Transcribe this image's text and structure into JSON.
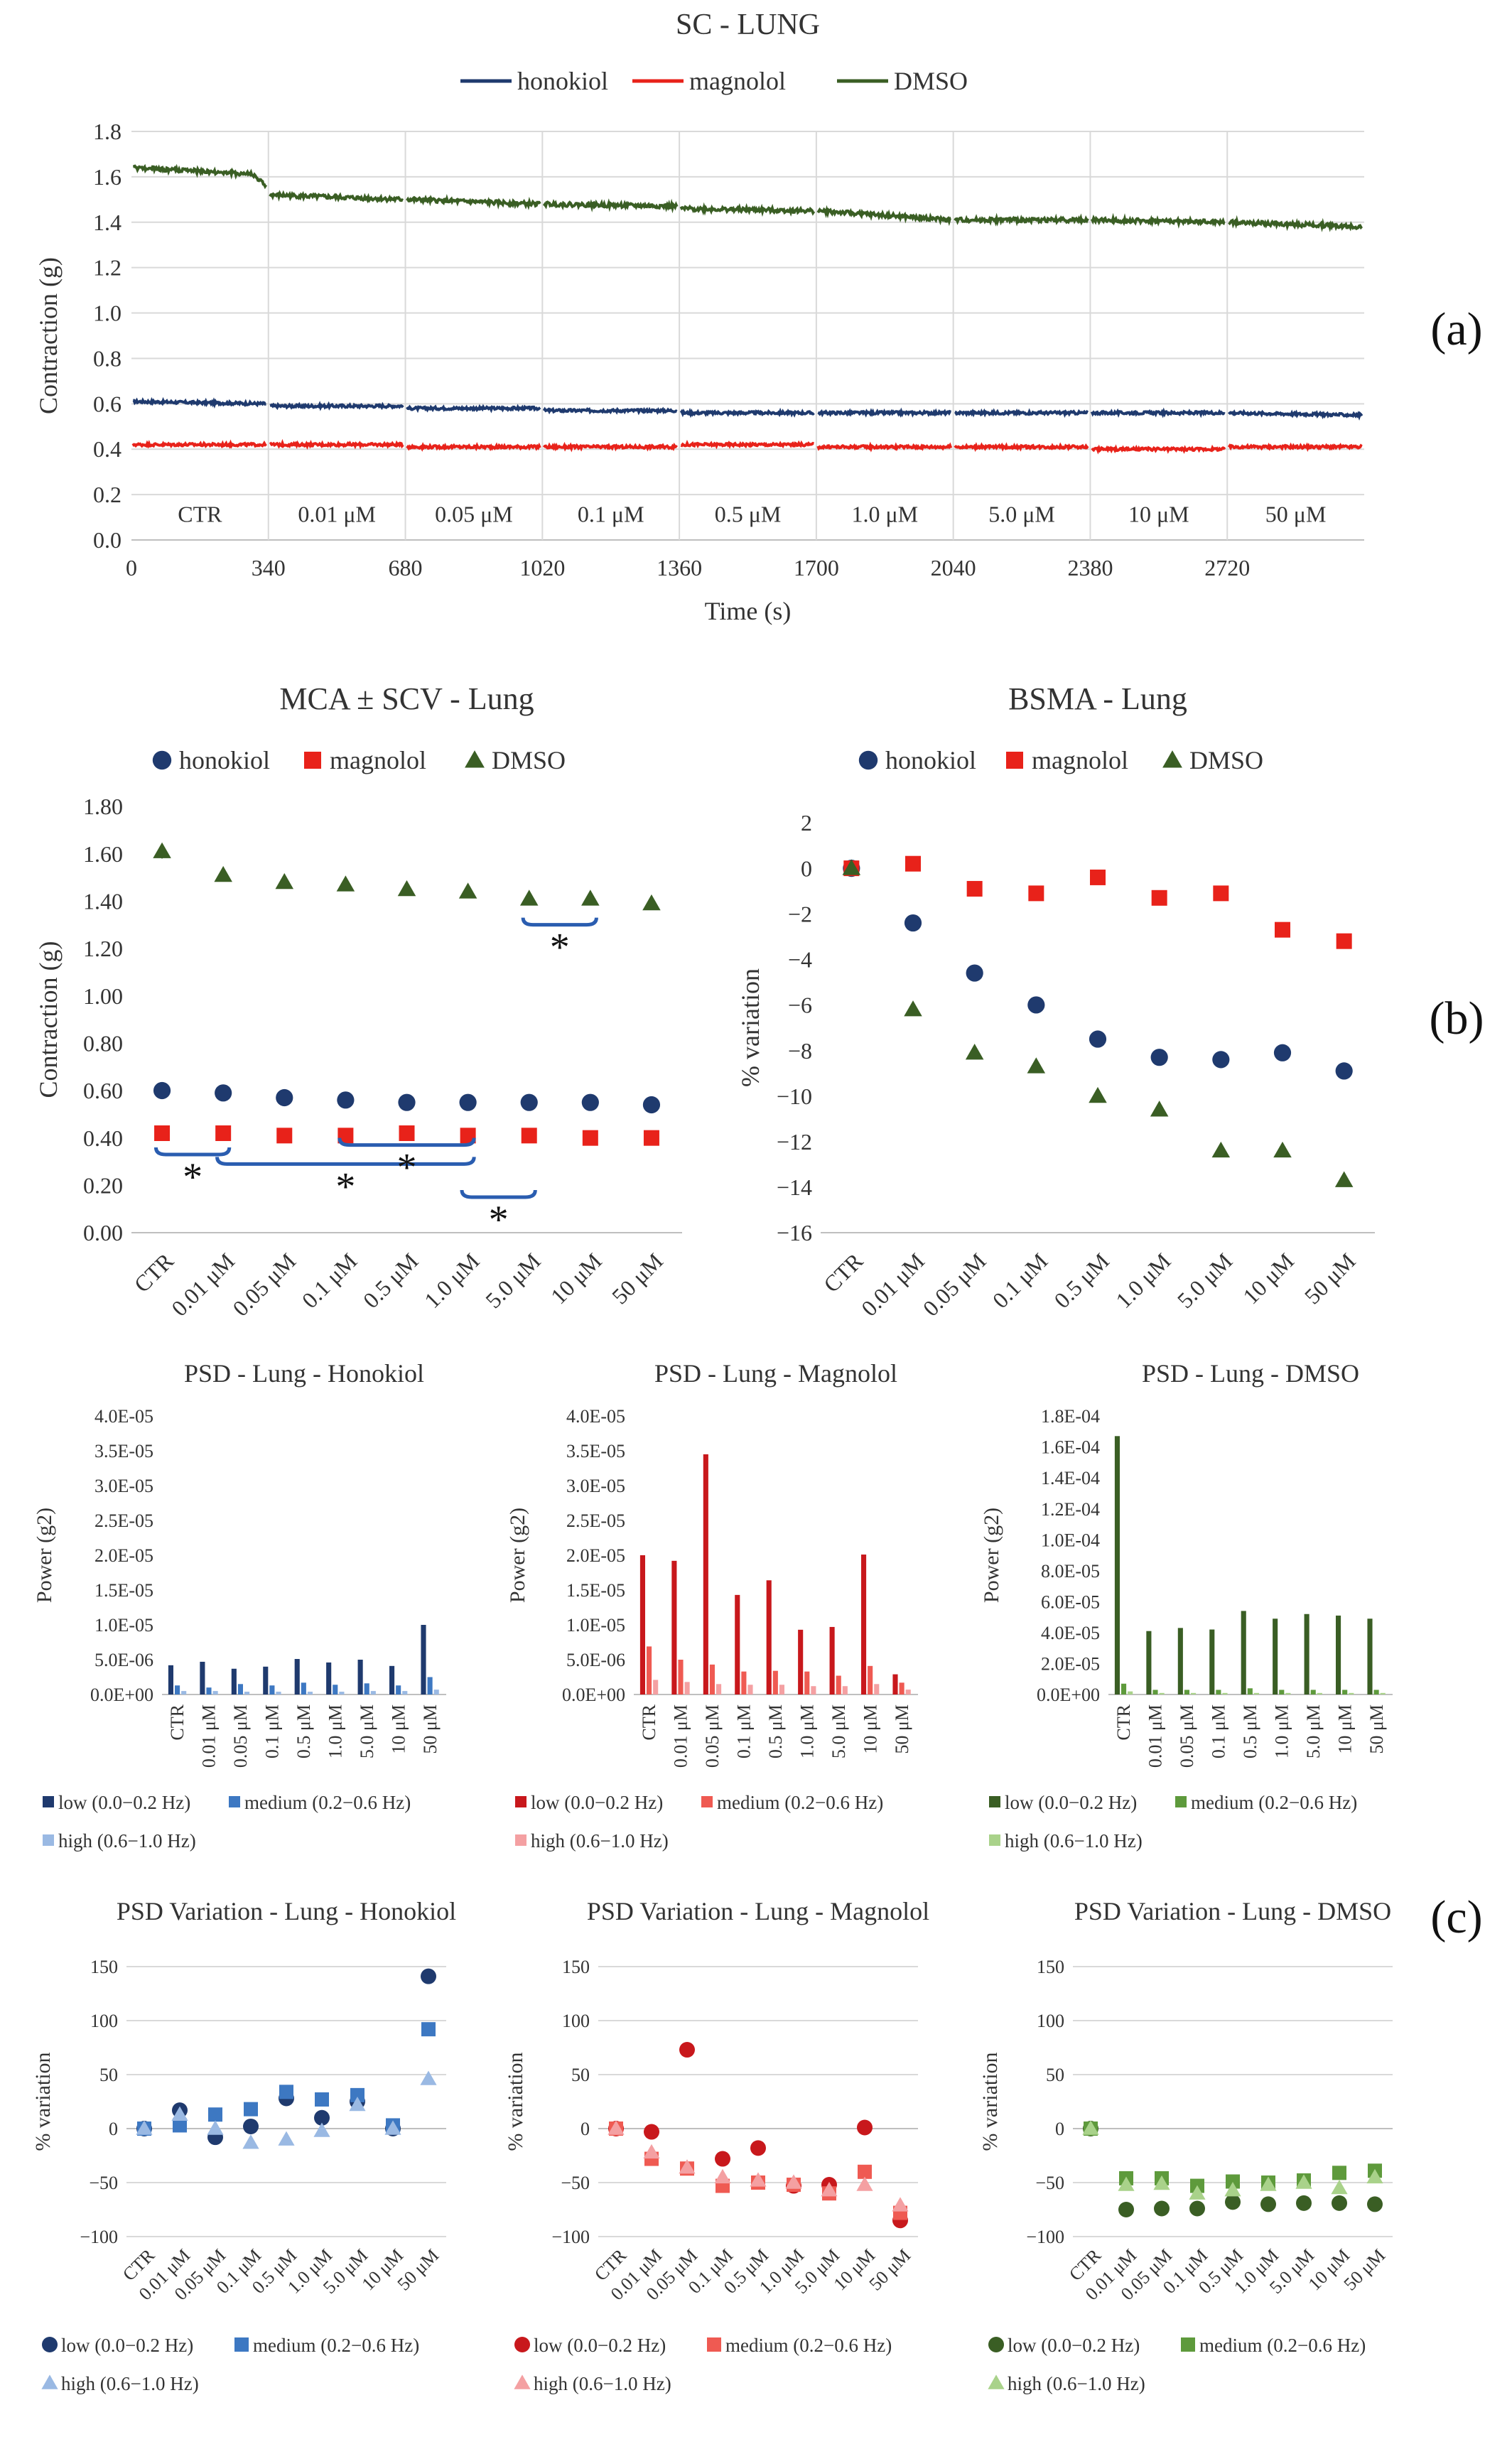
{
  "colors": {
    "honokiol": "#1f3a6e",
    "magnolol": "#e8221a",
    "dmso": "#3a5e24",
    "hon_low": "#1f3a6e",
    "hon_med": "#3d78c2",
    "hon_high": "#9ab9e3",
    "mag_low": "#c8181c",
    "mag_med": "#ef5a52",
    "mag_high": "#f4a0a2",
    "dmso_low": "#3a5e24",
    "dmso_med": "#5e9a3c",
    "dmso_high": "#a9d28a"
  },
  "panel_labels": [
    "(a)",
    "(b)",
    "(c)"
  ],
  "chart_data": [
    {
      "id": "sc",
      "type": "line",
      "title": "SC - LUNG",
      "xlabel": "Time (s)",
      "ylabel": "Contraction (g)",
      "xlim": [
        0,
        3060
      ],
      "ylim": [
        0,
        1.8
      ],
      "x_ticks": [
        "0",
        "340",
        "680",
        "1020",
        "1360",
        "1700",
        "2040",
        "2380",
        "2720"
      ],
      "y_ticks": [
        "0.0",
        "0.2",
        "0.4",
        "0.6",
        "0.8",
        "1.0",
        "1.2",
        "1.4",
        "1.6",
        "1.8"
      ],
      "segment_labels": [
        "CTR",
        "0.01 μM",
        "0.05 μM",
        "0.1 μM",
        "0.5 μM",
        "1.0 μM",
        "5.0 μM",
        "10 μM",
        "50 μM"
      ],
      "legend": "top",
      "series": [
        {
          "name": "honokiol",
          "segment_start": [
            0.61,
            0.59,
            0.58,
            0.57,
            0.56,
            0.56,
            0.56,
            0.56,
            0.56
          ],
          "segment_end": [
            0.6,
            0.59,
            0.58,
            0.57,
            0.56,
            0.56,
            0.56,
            0.56,
            0.55
          ]
        },
        {
          "name": "magnolol",
          "segment_start": [
            0.42,
            0.42,
            0.41,
            0.41,
            0.42,
            0.41,
            0.41,
            0.4,
            0.41
          ],
          "segment_end": [
            0.42,
            0.42,
            0.41,
            0.41,
            0.42,
            0.41,
            0.41,
            0.4,
            0.41
          ]
        },
        {
          "name": "DMSO",
          "segment_start": [
            1.64,
            1.52,
            1.5,
            1.48,
            1.46,
            1.45,
            1.41,
            1.41,
            1.4
          ],
          "segment_end": [
            1.56,
            1.5,
            1.48,
            1.47,
            1.45,
            1.41,
            1.41,
            1.4,
            1.38
          ]
        }
      ]
    },
    {
      "id": "mca",
      "type": "scatter",
      "title": "MCA ± SCV - Lung",
      "ylabel": "Contraction (g)",
      "ylim": [
        0,
        1.8
      ],
      "categories": [
        "CTR",
        "0.01 μM",
        "0.05 μM",
        "0.1 μM",
        "0.5 μM",
        "1.0 μM",
        "5.0 μM",
        "10 μM",
        "50 μM"
      ],
      "y_ticks": [
        "0.00",
        "0.20",
        "0.40",
        "0.60",
        "0.80",
        "1.00",
        "1.20",
        "1.40",
        "1.60",
        "1.80"
      ],
      "legend": "top",
      "series": [
        {
          "name": "honokiol",
          "values": [
            0.6,
            0.59,
            0.57,
            0.56,
            0.55,
            0.55,
            0.55,
            0.55,
            0.54
          ]
        },
        {
          "name": "magnolol",
          "values": [
            0.42,
            0.42,
            0.41,
            0.41,
            0.42,
            0.41,
            0.41,
            0.4,
            0.4
          ]
        },
        {
          "name": "DMSO",
          "values": [
            1.61,
            1.51,
            1.48,
            1.47,
            1.45,
            1.44,
            1.41,
            1.41,
            1.39
          ]
        }
      ],
      "annotations": [
        {
          "text": "*",
          "from": 6,
          "to": 7,
          "y": 1.3
        },
        {
          "text": "*",
          "from": 0,
          "to": 1,
          "y": 0.33
        },
        {
          "text": "*",
          "from": 1,
          "to": 5,
          "y": 0.29
        },
        {
          "text": "*",
          "from": 3,
          "to": 5,
          "y": 0.37
        },
        {
          "text": "*",
          "from": 5,
          "to": 6,
          "y": 0.15
        }
      ]
    },
    {
      "id": "bsma",
      "type": "scatter",
      "title": "BSMA - Lung",
      "ylabel": "% variation",
      "ylim": [
        -16,
        2
      ],
      "categories": [
        "CTR",
        "0.01 μM",
        "0.05 μM",
        "0.1 μM",
        "0.5 μM",
        "1.0 μM",
        "5.0 μM",
        "10 μM",
        "50 μM"
      ],
      "y_ticks": [
        "2",
        "0",
        "−2",
        "−4",
        "−6",
        "−8",
        "−10",
        "−12",
        "−14",
        "−16"
      ],
      "legend": "top",
      "series": [
        {
          "name": "honokiol",
          "values": [
            0,
            -2.4,
            -4.6,
            -6.0,
            -7.5,
            -8.3,
            -8.4,
            -8.1,
            -8.9
          ]
        },
        {
          "name": "magnolol",
          "values": [
            0,
            0.2,
            -0.9,
            -1.1,
            -0.4,
            -1.3,
            -1.1,
            -2.7,
            -3.2
          ]
        },
        {
          "name": "DMSO",
          "values": [
            0,
            -6.2,
            -8.1,
            -8.7,
            -10.0,
            -10.6,
            -12.4,
            -12.4,
            -13.7
          ]
        }
      ]
    },
    {
      "id": "psd_h",
      "type": "bar",
      "title": "PSD - Lung - Honokiol",
      "ylabel": "Power (g2)",
      "ylim": [
        0,
        4e-05
      ],
      "categories": [
        "CTR",
        "0.01 μM",
        "0.05 μM",
        "0.1 μM",
        "0.5 μM",
        "1.0 μM",
        "5.0 μM",
        "10 μM",
        "50 μM"
      ],
      "y_ticks": [
        "0.0E+00",
        "5.0E-06",
        "1.0E-05",
        "1.5E-05",
        "2.0E-05",
        "2.5E-05",
        "3.0E-05",
        "3.5E-05",
        "4.0E-05"
      ],
      "legend": "bottom",
      "series": [
        {
          "name": "low (0.0−0.2 Hz)",
          "values": [
            4.2e-06,
            4.7e-06,
            3.7e-06,
            4e-06,
            5.1e-06,
            4.6e-06,
            5e-06,
            4.1e-06,
            1e-05
          ]
        },
        {
          "name": "medium (0.2−0.6 Hz)",
          "values": [
            1.3e-06,
            1e-06,
            1.5e-06,
            1.3e-06,
            1.7e-06,
            1.4e-06,
            1.6e-06,
            1.3e-06,
            2.5e-06
          ]
        },
        {
          "name": "high (0.6−1.0 Hz)",
          "values": [
            5e-07,
            5e-07,
            4e-07,
            4e-07,
            4e-07,
            4e-07,
            5e-07,
            5e-07,
            7e-07
          ]
        }
      ]
    },
    {
      "id": "psd_m",
      "type": "bar",
      "title": "PSD - Lung - Magnolol",
      "ylabel": "Power (g2)",
      "ylim": [
        0,
        4e-05
      ],
      "categories": [
        "CTR",
        "0.01 μM",
        "0.05 μM",
        "0.1 μM",
        "0.5 μM",
        "1.0 μM",
        "5.0 μM",
        "10 μM",
        "50 μM"
      ],
      "y_ticks": [
        "0.0E+00",
        "5.0E-06",
        "1.0E-05",
        "1.5E-05",
        "2.0E-05",
        "2.5E-05",
        "3.0E-05",
        "3.5E-05",
        "4.0E-05"
      ],
      "legend": "bottom",
      "series": [
        {
          "name": "low (0.0−0.2 Hz)",
          "values": [
            2e-05,
            1.92e-05,
            3.45e-05,
            1.43e-05,
            1.64e-05,
            9.3e-06,
            9.7e-06,
            2.01e-05,
            2.9e-06
          ]
        },
        {
          "name": "medium (0.2−0.6 Hz)",
          "values": [
            6.9e-06,
            5e-06,
            4.3e-06,
            3.3e-06,
            3.4e-06,
            3.3e-06,
            2.7e-06,
            4.1e-06,
            1.7e-06
          ]
        },
        {
          "name": "high (0.6−1.0 Hz)",
          "values": [
            2.1e-06,
            1.8e-06,
            1.5e-06,
            1.4e-06,
            1.4e-06,
            1.2e-06,
            1.2e-06,
            1.5e-06,
            7e-07
          ]
        }
      ]
    },
    {
      "id": "psd_d",
      "type": "bar",
      "title": "PSD - Lung - DMSO",
      "ylabel": "Power (g2)",
      "ylim": [
        0,
        0.00018
      ],
      "categories": [
        "CTR",
        "0.01 μM",
        "0.05 μM",
        "0.1 μM",
        "0.5 μM",
        "1.0 μM",
        "5.0 μM",
        "10 μM",
        "50 μM"
      ],
      "y_ticks": [
        "0.0E+00",
        "2.0E-05",
        "4.0E-05",
        "6.0E-05",
        "8.0E-05",
        "1.0E-04",
        "1.2E-04",
        "1.4E-04",
        "1.6E-04",
        "1.8E-04"
      ],
      "legend": "bottom",
      "series": [
        {
          "name": "low (0.0−0.2 Hz)",
          "values": [
            0.000167,
            4.1e-05,
            4.3e-05,
            4.2e-05,
            5.4e-05,
            4.9e-05,
            5.2e-05,
            5.1e-05,
            4.9e-05
          ]
        },
        {
          "name": "medium (0.2−0.6 Hz)",
          "values": [
            7e-06,
            3e-06,
            3e-06,
            3e-06,
            4e-06,
            3e-06,
            3e-06,
            3e-06,
            3e-06
          ]
        },
        {
          "name": "high (0.6−1.0 Hz)",
          "values": [
            2e-06,
            1e-06,
            1e-06,
            1e-06,
            1e-06,
            1e-06,
            1e-06,
            1e-06,
            1e-06
          ]
        }
      ]
    },
    {
      "id": "var_h",
      "type": "scatter",
      "title": "PSD Variation - Lung - Honokiol",
      "ylabel": "% variation",
      "ylim": [
        -100,
        150
      ],
      "categories": [
        "CTR",
        "0.01 μM",
        "0.05 μM",
        "0.1 μM",
        "0.5 μM",
        "1.0 μM",
        "5.0 μM",
        "10 μM",
        "50 μM"
      ],
      "y_ticks": [
        "150",
        "100",
        "50",
        "0",
        "−50",
        "−100"
      ],
      "legend": "bottom",
      "series": [
        {
          "name": "low (0.0−0.2 Hz)",
          "values": [
            0,
            17,
            -8,
            2,
            28,
            10,
            25,
            0,
            141
          ]
        },
        {
          "name": "medium (0.2−0.6 Hz)",
          "values": [
            0,
            3,
            13,
            18,
            34,
            27,
            31,
            3,
            92
          ]
        },
        {
          "name": "high (0.6−1.0 Hz)",
          "values": [
            0,
            13,
            0,
            -13,
            -10,
            -2,
            22,
            0,
            46
          ]
        }
      ]
    },
    {
      "id": "var_m",
      "type": "scatter",
      "title": "PSD Variation - Lung - Magnolol",
      "ylabel": "% variation",
      "ylim": [
        -100,
        150
      ],
      "categories": [
        "CTR",
        "0.01 μM",
        "0.05 μM",
        "0.1 μM",
        "0.5 μM",
        "1.0 μM",
        "5.0 μM",
        "10 μM",
        "50 μM"
      ],
      "y_ticks": [
        "150",
        "100",
        "50",
        "0",
        "−50",
        "−100"
      ],
      "legend": "bottom",
      "series": [
        {
          "name": "low (0.0−0.2 Hz)",
          "values": [
            0,
            -3,
            73,
            -28,
            -18,
            -53,
            -52,
            1,
            -85
          ]
        },
        {
          "name": "medium (0.2−0.6 Hz)",
          "values": [
            0,
            -28,
            -37,
            -53,
            -50,
            -52,
            -60,
            -40,
            -78
          ]
        },
        {
          "name": "high (0.6−1.0 Hz)",
          "values": [
            0,
            -22,
            -36,
            -45,
            -48,
            -50,
            -57,
            -52,
            -71
          ]
        }
      ]
    },
    {
      "id": "var_d",
      "type": "scatter",
      "title": "PSD Variation - Lung - DMSO",
      "ylabel": "% variation",
      "ylim": [
        -100,
        150
      ],
      "categories": [
        "CTR",
        "0.01 μM",
        "0.05 μM",
        "0.1 μM",
        "0.5 μM",
        "1.0 μM",
        "5.0 μM",
        "10 μM",
        "50 μM"
      ],
      "y_ticks": [
        "150",
        "100",
        "50",
        "0",
        "−50",
        "−100"
      ],
      "legend": "bottom",
      "series": [
        {
          "name": "low (0.0−0.2 Hz)",
          "values": [
            0,
            -75,
            -74,
            -74,
            -68,
            -70,
            -69,
            -69,
            -70
          ]
        },
        {
          "name": "medium (0.2−0.6 Hz)",
          "values": [
            0,
            -46,
            -46,
            -53,
            -49,
            -50,
            -48,
            -41,
            -39
          ]
        },
        {
          "name": "high (0.6−1.0 Hz)",
          "values": [
            0,
            -52,
            -51,
            -60,
            -57,
            -52,
            -50,
            -55,
            -45
          ]
        }
      ]
    }
  ]
}
